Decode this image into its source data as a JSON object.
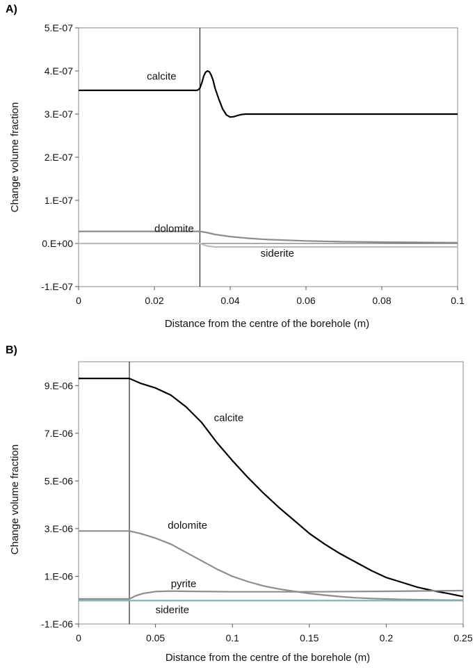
{
  "chart_data": [
    {
      "panel_label": "A)",
      "type": "line",
      "xlabel": "Distance from the centre of the borehole (m)",
      "ylabel": "Change volume fraction",
      "xlim": [
        0,
        0.1
      ],
      "ylim": [
        -1e-07,
        5e-07
      ],
      "xticks": [
        0,
        0.02,
        0.04,
        0.06,
        0.08,
        0.1
      ],
      "xtick_labels": [
        "0",
        "0.02",
        "0.04",
        "0.06",
        "0.08",
        "0.1"
      ],
      "yticks": [
        5e-07,
        4e-07,
        3e-07,
        2e-07,
        1e-07,
        0,
        -1e-07
      ],
      "ytick_labels": [
        "5.E-07",
        "4.E-07",
        "3.E-07",
        "2.E-07",
        "1.E-07",
        "0.E+00",
        "-1.E-07"
      ],
      "grid": false,
      "vline_x": 0.032,
      "zero_line": true,
      "series": [
        {
          "name": "calcite",
          "color": "#000000",
          "label_at": [
            0.018,
            3.8e-07
          ],
          "x": [
            0,
            0.031,
            0.0315,
            0.032,
            0.0325,
            0.033,
            0.0335,
            0.034,
            0.0345,
            0.035,
            0.0355,
            0.036,
            0.037,
            0.038,
            0.039,
            0.04,
            0.041,
            0.042,
            0.043,
            0.044,
            0.1
          ],
          "y": [
            3.55e-07,
            3.55e-07,
            3.56e-07,
            3.6e-07,
            3.72e-07,
            3.88e-07,
            3.97e-07,
            4e-07,
            3.98e-07,
            3.9e-07,
            3.78e-07,
            3.6e-07,
            3.35e-07,
            3.12e-07,
            2.98e-07,
            2.93e-07,
            2.94e-07,
            2.97e-07,
            2.99e-07,
            3e-07,
            3e-07
          ]
        },
        {
          "name": "dolomite",
          "color": "#8c8c8c",
          "label_at": [
            0.02,
            2.7e-08
          ],
          "x": [
            0,
            0.032,
            0.034,
            0.036,
            0.04,
            0.045,
            0.05,
            0.06,
            0.07,
            0.08,
            0.09,
            0.1
          ],
          "y": [
            2.8e-08,
            2.8e-08,
            2.5e-08,
            2.1e-08,
            1.6e-08,
            1.2e-08,
            9e-09,
            6e-09,
            4e-09,
            3e-09,
            2.5e-09,
            2e-09
          ]
        },
        {
          "name": "siderite",
          "color": "#bdbdbd",
          "label_at": [
            0.048,
            -3.1e-08
          ],
          "x": [
            0,
            0.032,
            0.033,
            0.034,
            0.036,
            0.1
          ],
          "y": [
            0,
            0,
            -3e-09,
            -6e-09,
            -8e-09,
            -8e-09
          ]
        }
      ]
    },
    {
      "panel_label": "B)",
      "type": "line",
      "xlabel": "Distance from the centre of the borehole (m)",
      "ylabel": "Change volume fraction",
      "xlim": [
        0,
        0.25
      ],
      "ylim": [
        -1e-06,
        1e-05
      ],
      "xticks": [
        0,
        0.05,
        0.1,
        0.15,
        0.2,
        0.25
      ],
      "xtick_labels": [
        "0",
        "0.05",
        "0.1",
        "0.15",
        "0.2",
        "0.25"
      ],
      "yticks": [
        9e-06,
        7e-06,
        5e-06,
        3e-06,
        1e-06,
        -1e-06
      ],
      "ytick_labels": [
        "9.E-06",
        "7.E-06",
        "5.E-06",
        "3.E-06",
        "1.E-06",
        "-1.E-06"
      ],
      "grid": false,
      "vline_x": 0.033,
      "zero_line": false,
      "series": [
        {
          "name": "calcite",
          "color": "#000000",
          "label_at": [
            0.088,
            7.5e-06
          ],
          "x": [
            0,
            0.033,
            0.04,
            0.05,
            0.06,
            0.07,
            0.08,
            0.09,
            0.1,
            0.11,
            0.12,
            0.13,
            0.14,
            0.15,
            0.16,
            0.17,
            0.18,
            0.19,
            0.2,
            0.21,
            0.22,
            0.23,
            0.24,
            0.25
          ],
          "y": [
            9.3e-06,
            9.3e-06,
            9.1e-06,
            8.9e-06,
            8.6e-06,
            8.1e-06,
            7.45e-06,
            6.6e-06,
            5.85e-06,
            5.15e-06,
            4.5e-06,
            3.9e-06,
            3.35e-06,
            2.8e-06,
            2.35e-06,
            1.95e-06,
            1.6e-06,
            1.25e-06,
            9.5e-07,
            7.5e-07,
            5.5e-07,
            4e-07,
            2.8e-07,
            1.5e-07
          ]
        },
        {
          "name": "dolomite",
          "color": "#8c8c8c",
          "label_at": [
            0.058,
            3e-06
          ],
          "x": [
            0,
            0.033,
            0.04,
            0.05,
            0.06,
            0.07,
            0.08,
            0.09,
            0.1,
            0.11,
            0.12,
            0.13,
            0.14,
            0.15,
            0.16,
            0.17,
            0.18,
            0.19,
            0.2,
            0.21,
            0.22,
            0.23,
            0.24,
            0.25
          ],
          "y": [
            2.9e-06,
            2.9e-06,
            2.8e-06,
            2.6e-06,
            2.35e-06,
            2e-06,
            1.65e-06,
            1.3e-06,
            1e-06,
            7.8e-07,
            6e-07,
            4.7e-07,
            3.7e-07,
            2.8e-07,
            2.1e-07,
            1.5e-07,
            1e-07,
            7e-08,
            5e-08,
            3e-08,
            2e-08,
            1e-08,
            0.0,
            0.0
          ]
        },
        {
          "name": "pyrite",
          "color": "#8c8c8c",
          "label_at": [
            0.06,
            5.5e-07
          ],
          "x": [
            0,
            0.033,
            0.037,
            0.042,
            0.05,
            0.06,
            0.07,
            0.1,
            0.15,
            0.2,
            0.25
          ],
          "y": [
            5e-08,
            5e-08,
            1.8e-07,
            2.8e-07,
            3.6e-07,
            3.8e-07,
            3.7e-07,
            3.5e-07,
            3.5e-07,
            3.7e-07,
            4e-07
          ]
        },
        {
          "name": "siderite",
          "color": "#7fb2b2",
          "label_at": [
            0.05,
            -5.5e-07
          ],
          "x": [
            0,
            0.25
          ],
          "y": [
            -2e-08,
            -2e-08
          ]
        }
      ]
    }
  ]
}
